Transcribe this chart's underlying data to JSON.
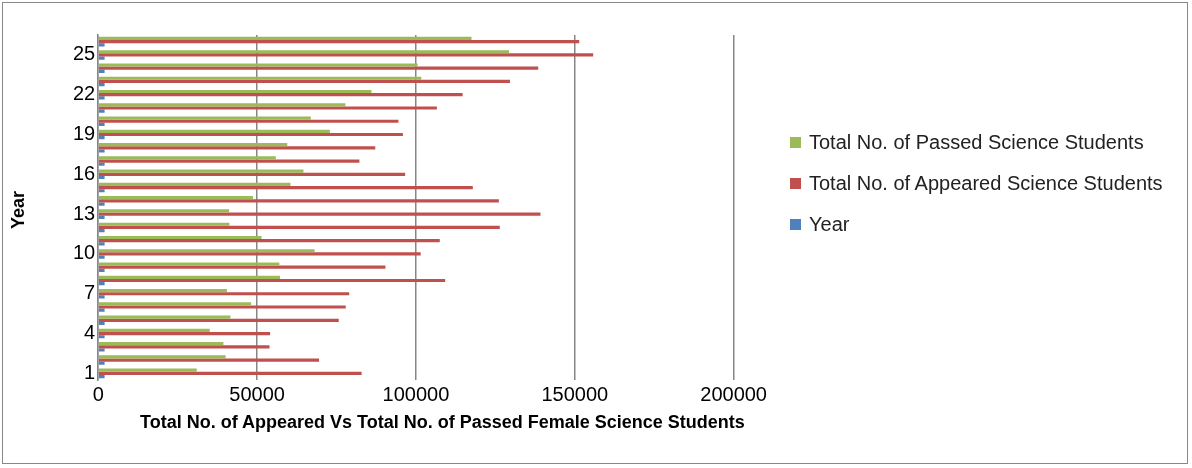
{
  "chart_data": {
    "type": "bar",
    "orientation": "horizontal",
    "xlabel": "Total No. of Appeared Vs Total No. of Passed  Female Science Students",
    "ylabel": "Year",
    "categories": [
      null,
      "25",
      null,
      null,
      "22",
      null,
      null,
      "19",
      null,
      null,
      "16",
      null,
      null,
      "13",
      null,
      null,
      "10",
      null,
      null,
      "7",
      null,
      null,
      "4",
      null,
      null,
      "1"
    ],
    "series": [
      {
        "name": "Total No. of Passed Science Students",
        "color": "#9bbb59",
        "values": [
          117500,
          129300,
          100500,
          101700,
          86000,
          77800,
          66900,
          72900,
          59500,
          55900,
          64600,
          60500,
          48700,
          41200,
          41300,
          51400,
          68100,
          57000,
          57200,
          40500,
          48100,
          41600,
          35100,
          39400,
          40100,
          31000
        ]
      },
      {
        "name": "Total No. of Appeared Science Students",
        "color": "#c0504d",
        "values": [
          151400,
          155800,
          138500,
          129600,
          114700,
          106600,
          94500,
          95900,
          87200,
          82200,
          96600,
          117900,
          126100,
          139200,
          126400,
          107500,
          101500,
          90400,
          109200,
          79000,
          77900,
          75700,
          54100,
          53900,
          69500,
          82900
        ]
      },
      {
        "name": "Year",
        "color": "#4f81bd",
        "values": [
          2000,
          2000,
          2000,
          2000,
          2000,
          2000,
          2000,
          2000,
          2000,
          2000,
          2000,
          2000,
          2000,
          2000,
          2000,
          2000,
          2000,
          2000,
          2000,
          2000,
          2000,
          2000,
          2000,
          2000,
          2000,
          2000
        ]
      }
    ],
    "xlim": [
      0,
      200000
    ],
    "xticks": [
      0,
      50000,
      100000,
      150000,
      200000
    ],
    "grid": "x",
    "legend": "right"
  }
}
